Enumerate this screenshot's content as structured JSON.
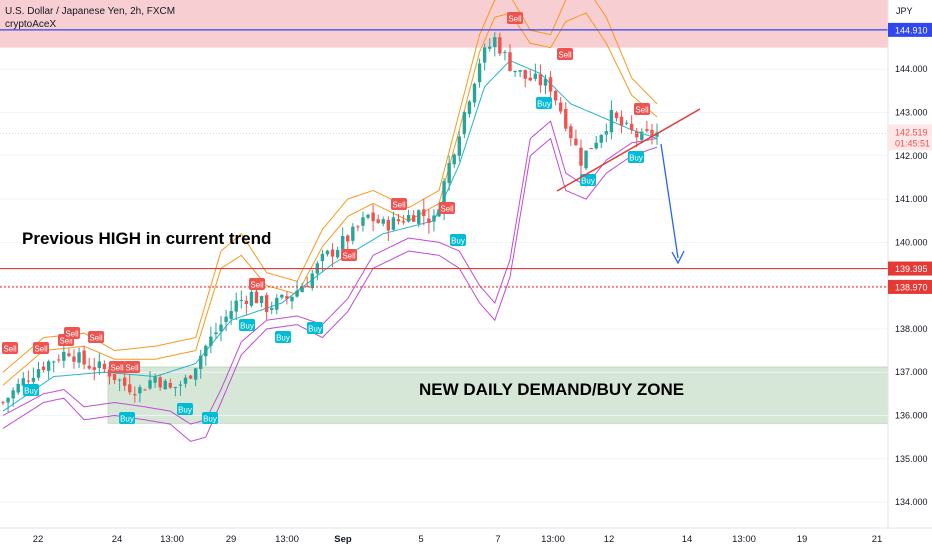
{
  "header": {
    "symbol_line": "U.S. Dollar / Japanese Yen, 2h, FXCM",
    "author": "cryptoAceX"
  },
  "colors": {
    "up": "#26a69a",
    "down": "#ef5350",
    "ema": "#22b5c9",
    "band_outer": "#f79a1e",
    "band_inner": "#c14bd6",
    "resistance_zone": "#f7cfd3",
    "demand_zone": "#d7e7d7",
    "blue_line": "#2f46f0",
    "red_line": "#e53935",
    "arrow": "#2962ff"
  },
  "chart_data": {
    "type": "candlestick",
    "currency_label": "JPY",
    "y_range": [
      133.4,
      145.6
    ],
    "y_ticks": [
      "144.000",
      "143.000",
      "142.000",
      "141.000",
      "140.000",
      "138.000",
      "137.000",
      "136.000",
      "135.000",
      "134.000"
    ],
    "x_tick_labels": [
      "22",
      "24",
      "13:00",
      "29",
      "13:00",
      "Sep",
      "5",
      "7",
      "13:00",
      "12",
      "14",
      "13:00",
      "19",
      "21"
    ],
    "levels": [
      {
        "price": 144.91,
        "label": "144.910",
        "style": "solid",
        "color": "#2f46f0"
      },
      {
        "price": 139.395,
        "label": "139.395",
        "style": "solid",
        "color": "#e53935"
      },
      {
        "price": 138.97,
        "label": "138.970",
        "style": "dotted",
        "color": "#e53935"
      }
    ],
    "last_price": {
      "price": 142.519,
      "label": "142.519",
      "countdown": "01:45:51"
    },
    "zones": [
      {
        "name": "resistance",
        "from": 144.5,
        "to": 145.6
      },
      {
        "name": "demand",
        "from": 135.82,
        "to": 137.12,
        "label": "NEW DAILY DEMAND/BUY ZONE"
      }
    ],
    "annotation_text": "Previous HIGH in current trend",
    "signal_labels": {
      "sell": "Sell",
      "buy": "Buy"
    },
    "sell_signals": 14,
    "buy_signals": 11,
    "close_path": [
      [
        0,
        136.3
      ],
      [
        4,
        136.8
      ],
      [
        7,
        137.1
      ],
      [
        10,
        137.3
      ],
      [
        13,
        137.5
      ],
      [
        16,
        137.2
      ],
      [
        19,
        137.1
      ],
      [
        21,
        137.0
      ],
      [
        24,
        136.7
      ],
      [
        27,
        136.6
      ],
      [
        30,
        136.9
      ],
      [
        33,
        136.6
      ],
      [
        36,
        136.8
      ],
      [
        40,
        137.6
      ],
      [
        43,
        138.1
      ],
      [
        46,
        138.6
      ],
      [
        49,
        138.8
      ],
      [
        52,
        138.5
      ],
      [
        56,
        138.7
      ],
      [
        60,
        139.1
      ],
      [
        63,
        139.6
      ],
      [
        66,
        139.9
      ],
      [
        69,
        140.2
      ],
      [
        72,
        140.6
      ],
      [
        75,
        140.4
      ],
      [
        78,
        140.5
      ],
      [
        82,
        140.7
      ],
      [
        85,
        140.5
      ],
      [
        88,
        141.8
      ],
      [
        91,
        143.0
      ],
      [
        94,
        144.2
      ],
      [
        97,
        144.7
      ],
      [
        100,
        144.1
      ],
      [
        103,
        143.8
      ],
      [
        106,
        143.7
      ],
      [
        108,
        143.6
      ],
      [
        111,
        142.8
      ],
      [
        114,
        141.9
      ],
      [
        117,
        142.4
      ],
      [
        120,
        142.9
      ],
      [
        123,
        142.6
      ],
      [
        126,
        142.4
      ],
      [
        128,
        142.52
      ]
    ],
    "ema_path": [
      [
        0,
        136.1
      ],
      [
        10,
        136.9
      ],
      [
        20,
        137.0
      ],
      [
        30,
        136.9
      ],
      [
        38,
        137.2
      ],
      [
        45,
        138.2
      ],
      [
        55,
        138.6
      ],
      [
        65,
        139.5
      ],
      [
        75,
        140.2
      ],
      [
        85,
        140.5
      ],
      [
        90,
        141.8
      ],
      [
        95,
        143.6
      ],
      [
        100,
        144.2
      ],
      [
        106,
        143.9
      ],
      [
        112,
        143.2
      ],
      [
        118,
        142.9
      ],
      [
        124,
        142.6
      ],
      [
        129,
        142.4
      ]
    ],
    "upper_outer_path": [
      [
        0,
        137.0
      ],
      [
        8,
        137.8
      ],
      [
        16,
        137.9
      ],
      [
        22,
        137.5
      ],
      [
        30,
        137.6
      ],
      [
        38,
        137.8
      ],
      [
        43,
        139.8
      ],
      [
        47,
        140.2
      ],
      [
        52,
        139.3
      ],
      [
        58,
        139.1
      ],
      [
        63,
        140.3
      ],
      [
        68,
        141.0
      ],
      [
        73,
        141.2
      ],
      [
        80,
        140.8
      ],
      [
        86,
        141.2
      ],
      [
        90,
        143.0
      ],
      [
        94,
        144.8
      ],
      [
        97,
        145.6
      ],
      [
        100,
        145.7
      ],
      [
        104,
        144.9
      ],
      [
        108,
        144.8
      ],
      [
        111,
        145.6
      ],
      [
        115,
        145.9
      ],
      [
        119,
        145.2
      ],
      [
        124,
        143.8
      ],
      [
        129,
        143.2
      ]
    ],
    "upper_inner_path": [
      [
        0,
        136.7
      ],
      [
        8,
        137.5
      ],
      [
        16,
        137.6
      ],
      [
        22,
        137.3
      ],
      [
        30,
        137.3
      ],
      [
        38,
        137.5
      ],
      [
        43,
        139.4
      ],
      [
        47,
        139.7
      ],
      [
        52,
        139.0
      ],
      [
        58,
        138.8
      ],
      [
        63,
        139.9
      ],
      [
        68,
        140.6
      ],
      [
        73,
        140.9
      ],
      [
        80,
        140.5
      ],
      [
        86,
        140.9
      ],
      [
        90,
        142.6
      ],
      [
        94,
        144.4
      ],
      [
        97,
        145.2
      ],
      [
        100,
        145.3
      ],
      [
        104,
        144.6
      ],
      [
        108,
        144.5
      ],
      [
        111,
        145.1
      ],
      [
        115,
        145.3
      ],
      [
        119,
        144.6
      ],
      [
        124,
        143.4
      ],
      [
        129,
        142.9
      ]
    ],
    "lower_outer_path": [
      [
        0,
        135.7
      ],
      [
        8,
        136.3
      ],
      [
        12,
        136.4
      ],
      [
        16,
        135.9
      ],
      [
        22,
        136.0
      ],
      [
        28,
        135.9
      ],
      [
        33,
        135.8
      ],
      [
        37,
        135.4
      ],
      [
        40,
        135.5
      ],
      [
        43,
        136.3
      ],
      [
        47,
        137.4
      ],
      [
        52,
        138.0
      ],
      [
        58,
        138.1
      ],
      [
        63,
        137.8
      ],
      [
        68,
        138.4
      ],
      [
        73,
        139.4
      ],
      [
        80,
        139.8
      ],
      [
        86,
        139.7
      ],
      [
        90,
        139.4
      ],
      [
        94,
        138.6
      ],
      [
        97,
        138.2
      ],
      [
        100,
        139.2
      ],
      [
        104,
        142.0
      ],
      [
        108,
        142.4
      ],
      [
        111,
        141.2
      ],
      [
        115,
        141.0
      ],
      [
        119,
        141.6
      ],
      [
        124,
        142.0
      ],
      [
        129,
        142.2
      ]
    ],
    "lower_inner_path": [
      [
        0,
        136.0
      ],
      [
        8,
        136.5
      ],
      [
        12,
        136.6
      ],
      [
        16,
        136.2
      ],
      [
        22,
        136.3
      ],
      [
        28,
        136.2
      ],
      [
        33,
        136.1
      ],
      [
        37,
        135.8
      ],
      [
        40,
        135.9
      ],
      [
        43,
        136.6
      ],
      [
        47,
        137.7
      ],
      [
        52,
        138.2
      ],
      [
        58,
        138.3
      ],
      [
        63,
        138.1
      ],
      [
        68,
        138.7
      ],
      [
        73,
        139.7
      ],
      [
        80,
        140.1
      ],
      [
        86,
        140.0
      ],
      [
        90,
        139.8
      ],
      [
        94,
        139.0
      ],
      [
        97,
        138.6
      ],
      [
        100,
        139.6
      ],
      [
        104,
        142.4
      ],
      [
        108,
        142.8
      ],
      [
        111,
        141.6
      ],
      [
        115,
        141.3
      ],
      [
        119,
        141.9
      ],
      [
        124,
        142.3
      ],
      [
        129,
        142.4
      ]
    ]
  }
}
